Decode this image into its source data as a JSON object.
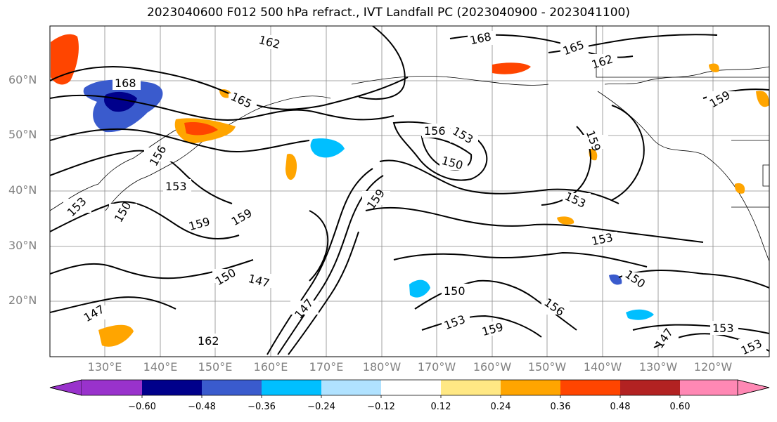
{
  "title": "2023040600 F012 500 hPa refract., IVT Landfall PC (2023040900 - 2023041100)",
  "lat_labels": [
    "60°N",
    "50°N",
    "40°N",
    "30°N",
    "20°N"
  ],
  "lon_labels": [
    "130°E",
    "140°E",
    "150°E",
    "160°E",
    "170°E",
    "180°W",
    "170°W",
    "160°W",
    "150°W",
    "140°W",
    "130°W",
    "120°W"
  ],
  "contour_labels": [
    "162",
    "168",
    "165",
    "162",
    "168",
    "165",
    "159",
    "156",
    "153",
    "150",
    "153",
    "159",
    "156",
    "153",
    "159",
    "159",
    "153",
    "150",
    "147",
    "147",
    "150",
    "153",
    "156",
    "159",
    "150",
    "147",
    "150",
    "153",
    "153",
    "159",
    "162",
    "147",
    "153"
  ],
  "colorbar": {
    "colors": [
      "#9932cc",
      "#00008b",
      "#3a5bcd",
      "#00bfff",
      "#b0e2ff",
      "#ffffff",
      "#ffe884",
      "#ffa500",
      "#ff4500",
      "#b22222",
      "#ff88b4"
    ],
    "tick_labels": [
      "−0.60",
      "−0.48",
      "−0.36",
      "−0.24",
      "−0.12",
      "0.12",
      "0.24",
      "0.36",
      "0.48",
      "0.60"
    ]
  }
}
